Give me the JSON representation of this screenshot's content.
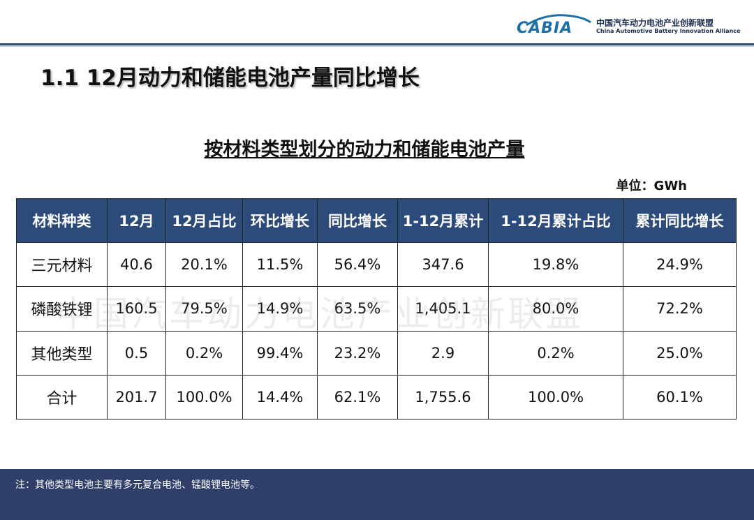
{
  "header": {
    "logo_text": "CABIA",
    "org_name_cn": "中国汽车动力电池产业创新联盟",
    "org_name_en": "China Automotive Battery Innovation Alliance",
    "accent_color": "#2c4a7a"
  },
  "slide_title": "1.1  12月动力和储能电池产量同比增长",
  "table_title": "按材料类型划分的动力和储能电池产量",
  "unit": "单位：GWh",
  "table": {
    "headers": [
      "材料种类",
      "12月",
      "12月占比",
      "环比增长",
      "同比增长",
      "1-12月累计",
      "1-12月累计占比",
      "累计同比增长"
    ],
    "rows": [
      [
        "三元材料",
        "40.6",
        "20.1%",
        "11.5%",
        "56.4%",
        "347.6",
        "19.8%",
        "24.9%"
      ],
      [
        "磷酸铁锂",
        "160.5",
        "79.5%",
        "14.9%",
        "63.5%",
        "1,405.1",
        "80.0%",
        "72.2%"
      ],
      [
        "其他类型",
        "0.5",
        "0.2%",
        "99.4%",
        "23.2%",
        "2.9",
        "0.2%",
        "25.0%"
      ],
      [
        "合计",
        "201.7",
        "100.0%",
        "14.4%",
        "62.1%",
        "1,755.6",
        "100.0%",
        "60.1%"
      ]
    ]
  },
  "watermark": "中国汽车动力电池产业创新联盟",
  "footer_note": "注：其他类型电池主要有多元复合电池、锰酸锂电池等。"
}
